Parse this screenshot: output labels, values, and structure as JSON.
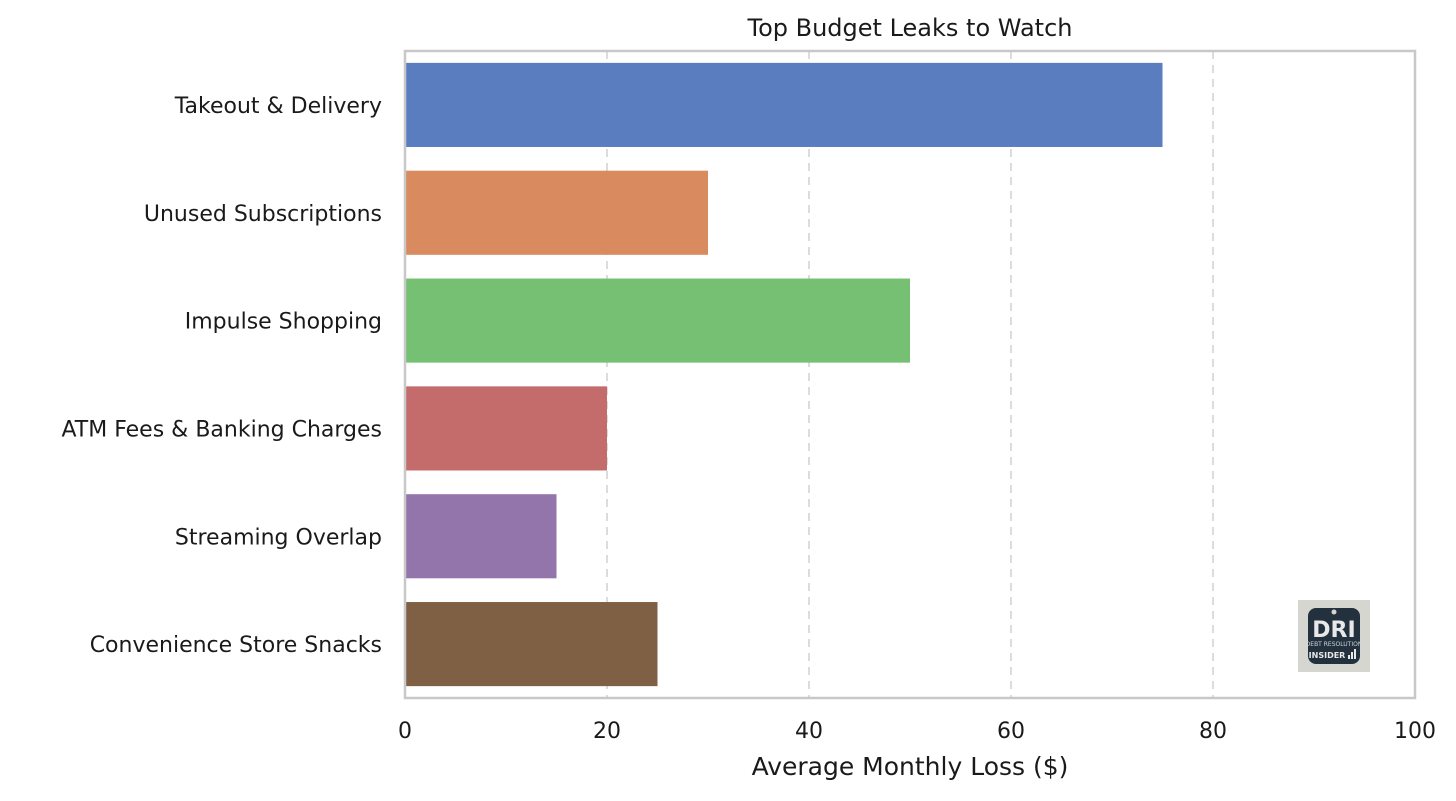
{
  "chart_data": {
    "type": "bar",
    "orientation": "horizontal",
    "title": "Top Budget Leaks to Watch",
    "xlabel": "Average Monthly Loss ($)",
    "ylabel": "",
    "xlim": [
      0,
      100
    ],
    "xticks": [
      0,
      20,
      40,
      60,
      80,
      100
    ],
    "grid": "x-dashed",
    "categories": [
      "Takeout & Delivery",
      "Unused Subscriptions",
      "Impulse Shopping",
      "ATM Fees & Banking Charges",
      "Streaming Overlap",
      "Convenience Store Snacks"
    ],
    "values": [
      75,
      30,
      50,
      20,
      15,
      25
    ],
    "colors": [
      "#5a7dbf",
      "#d98a5e",
      "#75c072",
      "#c46b6b",
      "#9375ab",
      "#7f6045"
    ]
  },
  "watermark": {
    "logo_big": "DRI",
    "logo_mid": "INSIDER",
    "logo_small": "DEBT RESOLUTION"
  }
}
